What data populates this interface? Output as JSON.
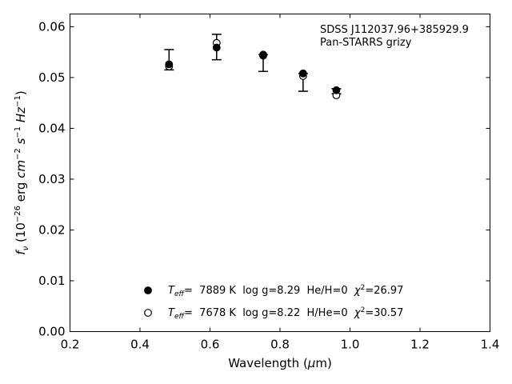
{
  "chart_data": {
    "type": "scatter",
    "xlabel": "Wavelength (μm)",
    "ylabel": "f_ν (10^-26 erg cm^-2 s^-1 Hz^-1)",
    "xlim": [
      0.2,
      1.4
    ],
    "ylim": [
      0.0,
      0.0625
    ],
    "xticks": [
      0.2,
      0.4,
      0.6,
      0.8,
      1.0,
      1.2,
      1.4
    ],
    "xtick_labels": [
      "0.2",
      "0.4",
      "0.6",
      "0.8",
      "1.0",
      "1.2",
      "1.4"
    ],
    "yticks": [
      0.0,
      0.01,
      0.02,
      0.03,
      0.04,
      0.05,
      0.06
    ],
    "ytick_labels": [
      "0.00",
      "0.01",
      "0.02",
      "0.03",
      "0.04",
      "0.05",
      "0.06"
    ],
    "grid": false,
    "annotation_lines": [
      "SDSS J112037.96+385929.9",
      "Pan-STARRS grizy"
    ],
    "observed": {
      "x": [
        0.483,
        0.619,
        0.752,
        0.866,
        0.961
      ],
      "y_low": [
        0.0515,
        0.0535,
        0.0512,
        0.0473,
        0.0468
      ],
      "y_high": [
        0.0555,
        0.0585,
        0.0545,
        0.0508,
        0.0478
      ]
    },
    "series": [
      {
        "name": "T_eff= 7889 K log g=8.29 He/H=0 χ²=26.97",
        "marker": "filled-circle",
        "x": [
          0.483,
          0.619,
          0.752,
          0.866,
          0.961
        ],
        "y": [
          0.0526,
          0.0559,
          0.0543,
          0.0508,
          0.0475
        ]
      },
      {
        "name": "T_eff= 7678 K log g=8.22 H/He=0 χ²=30.57",
        "marker": "open-circle",
        "x": [
          0.483,
          0.619,
          0.752,
          0.866,
          0.961
        ],
        "y": [
          0.0522,
          0.0568,
          0.0545,
          0.0503,
          0.0465
        ]
      }
    ],
    "legend": {
      "placement": "lower-center",
      "entries": [
        {
          "marker": "filled-circle",
          "teff": "7889",
          "logg": "8.29",
          "comp": "He/H=0",
          "chi2": "26.97"
        },
        {
          "marker": "open-circle",
          "teff": "7678",
          "logg": "8.22",
          "comp": "H/He=0",
          "chi2": "30.57"
        }
      ]
    }
  }
}
